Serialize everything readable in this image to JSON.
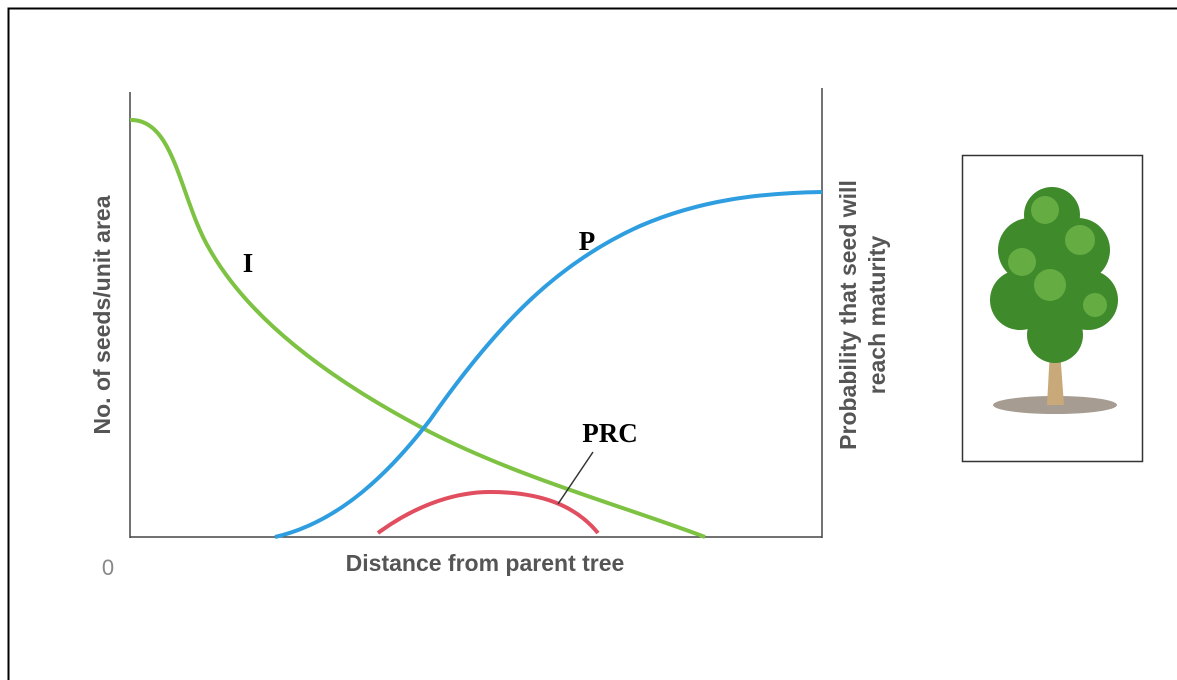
{
  "axes": {
    "y_label": "No. of seeds/unit area",
    "y2_label": [
      "Probability that seed will",
      "reach maturity"
    ],
    "x_label": "Distance from parent tree",
    "origin": "0"
  },
  "curves": [
    {
      "label": "I"
    },
    {
      "label": "P"
    },
    {
      "label": "PRC"
    }
  ]
}
